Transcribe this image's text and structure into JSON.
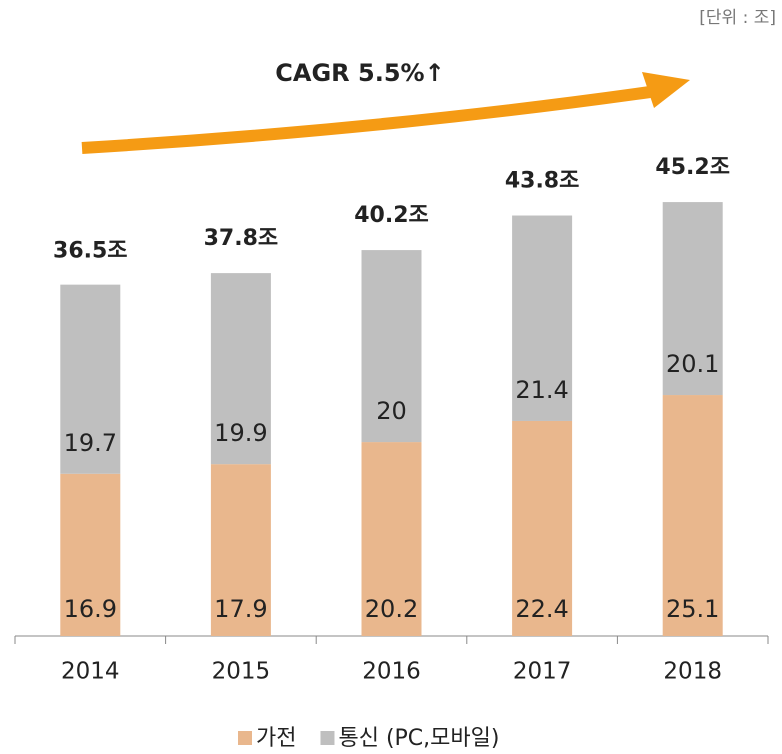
{
  "chart_data": {
    "type": "stacked_bar",
    "unit_note": "[단위 : 조]",
    "annotation": "CAGR 5.5%↑",
    "categories": [
      "2014",
      "2015",
      "2016",
      "2017",
      "2018"
    ],
    "series": [
      {
        "name": "가전",
        "color": "#e9b78d",
        "values": [
          16.9,
          17.9,
          20.2,
          22.4,
          25.1
        ]
      },
      {
        "name": "통신 (PC,모바일)",
        "color": "#bfbfbf",
        "values": [
          19.7,
          19.9,
          20.0,
          21.4,
          20.1
        ]
      }
    ],
    "totals": {
      "values": [
        36.5,
        37.8,
        40.2,
        43.8,
        45.2
      ],
      "value_labels": [
        "36.5조",
        "37.8조",
        "40.2조",
        "43.8조",
        "45.2조"
      ]
    },
    "legend": "bottom"
  }
}
